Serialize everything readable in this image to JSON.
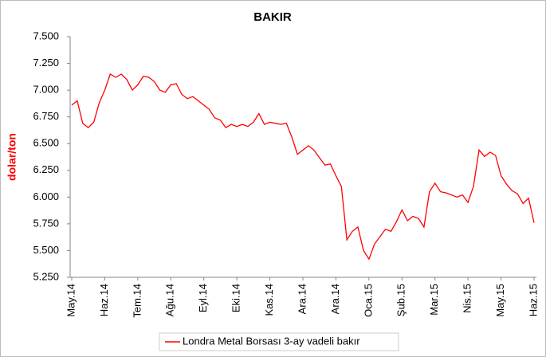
{
  "chart_data": {
    "type": "line",
    "title": "BAKIR",
    "y_label": "dolar/ton",
    "categories": [
      "May.14",
      null,
      null,
      null,
      null,
      null,
      "Haz.14",
      null,
      null,
      null,
      null,
      null,
      "Tem.14",
      null,
      null,
      null,
      null,
      null,
      "Ağu.14",
      null,
      null,
      null,
      null,
      null,
      "Eyl.14",
      null,
      null,
      null,
      null,
      null,
      "Eki.14",
      null,
      null,
      null,
      null,
      null,
      "Kas.14",
      null,
      null,
      null,
      null,
      null,
      "Ara.14",
      null,
      null,
      null,
      null,
      null,
      "Ara.14",
      null,
      null,
      null,
      null,
      null,
      "Oca.15",
      null,
      null,
      null,
      null,
      null,
      "Şub.15",
      null,
      null,
      null,
      null,
      null,
      "Mar.15",
      null,
      null,
      null,
      null,
      null,
      "Nis.15",
      null,
      null,
      null,
      null,
      null,
      "May.15",
      null,
      null,
      null,
      null,
      null,
      "Haz.15"
    ],
    "series": [
      {
        "name": "Londra Metal Borsası 3-ay vadeli bakır",
        "color": "#ff0000",
        "values": [
          6860,
          6900,
          6690,
          6650,
          6700,
          6880,
          7000,
          7150,
          7120,
          7150,
          7100,
          7000,
          7050,
          7130,
          7120,
          7080,
          7000,
          6980,
          7050,
          7060,
          6960,
          6920,
          6940,
          6900,
          6860,
          6820,
          6740,
          6720,
          6650,
          6680,
          6660,
          6680,
          6660,
          6700,
          6780,
          6680,
          6700,
          6690,
          6680,
          6690,
          6560,
          6400,
          6440,
          6480,
          6440,
          6370,
          6300,
          6310,
          6200,
          6100,
          5600,
          5680,
          5720,
          5500,
          5420,
          5560,
          5630,
          5700,
          5680,
          5770,
          5880,
          5780,
          5820,
          5800,
          5720,
          6050,
          6130,
          6050,
          6040,
          6020,
          6000,
          6020,
          5950,
          6100,
          6440,
          6380,
          6420,
          6390,
          6200,
          6120,
          6060,
          6030,
          5940,
          5990,
          5760
        ]
      }
    ],
    "ylim": [
      5250,
      7500
    ],
    "yticks": [
      {
        "value": 5250,
        "label": "5.250"
      },
      {
        "value": 5500,
        "label": "5.500"
      },
      {
        "value": 5750,
        "label": "5.750"
      },
      {
        "value": 6000,
        "label": "6.000"
      },
      {
        "value": 6250,
        "label": "6.250"
      },
      {
        "value": 6500,
        "label": "6.500"
      },
      {
        "value": 6750,
        "label": "6.750"
      },
      {
        "value": 7000,
        "label": "7.000"
      },
      {
        "value": 7250,
        "label": "7.250"
      },
      {
        "value": 7500,
        "label": "7.500"
      }
    ],
    "grid": false
  }
}
